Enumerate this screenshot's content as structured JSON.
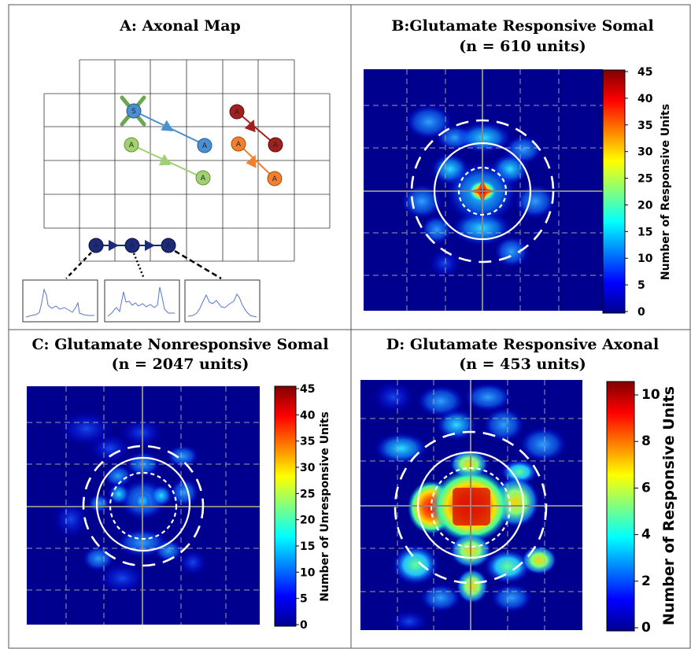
{
  "panels": {
    "a": {
      "title": "A: Axonal Map",
      "node_labels": {
        "soma": "S",
        "axon": "A"
      }
    },
    "b": {
      "title_line1": "B:Glutamate Responsive Somal",
      "title_line2": "(n = 610 units)",
      "colorbar_label": "Number of Responsive Units",
      "colorbar_ticks": [
        "45",
        "40",
        "35",
        "30",
        "25",
        "20",
        "15",
        "10",
        "5",
        "0"
      ]
    },
    "c": {
      "title_line1": "C: Glutamate Nonresponsive Somal",
      "title_line2": "(n = 2047 units)",
      "colorbar_label": "Number of Unresponsive Units",
      "colorbar_ticks": [
        "45",
        "40",
        "35",
        "30",
        "25",
        "20",
        "15",
        "10",
        "5",
        "0"
      ]
    },
    "d": {
      "title_line1": "D: Glutamate Responsive Axonal",
      "title_line2": "(n = 453 units)",
      "colorbar_label": "Number of Responsive Units",
      "colorbar_ticks": [
        "10",
        "8",
        "6",
        "4",
        "2",
        "0"
      ]
    }
  },
  "colors": {
    "colormap": [
      "#00008f",
      "#0000ff",
      "#0080ff",
      "#00ffff",
      "#80ff80",
      "#ffff00",
      "#ff8000",
      "#ff0000",
      "#800000"
    ],
    "heatmap_background": "#00008f",
    "soma_node": "#4a90d0",
    "dark_red_node": "#a02020",
    "orange_node": "#f08030",
    "light_green_node": "#a0d070",
    "navy_node": "#1c2a7a",
    "soma_marker": "#6aa84f",
    "trace": "#5577cc"
  }
}
